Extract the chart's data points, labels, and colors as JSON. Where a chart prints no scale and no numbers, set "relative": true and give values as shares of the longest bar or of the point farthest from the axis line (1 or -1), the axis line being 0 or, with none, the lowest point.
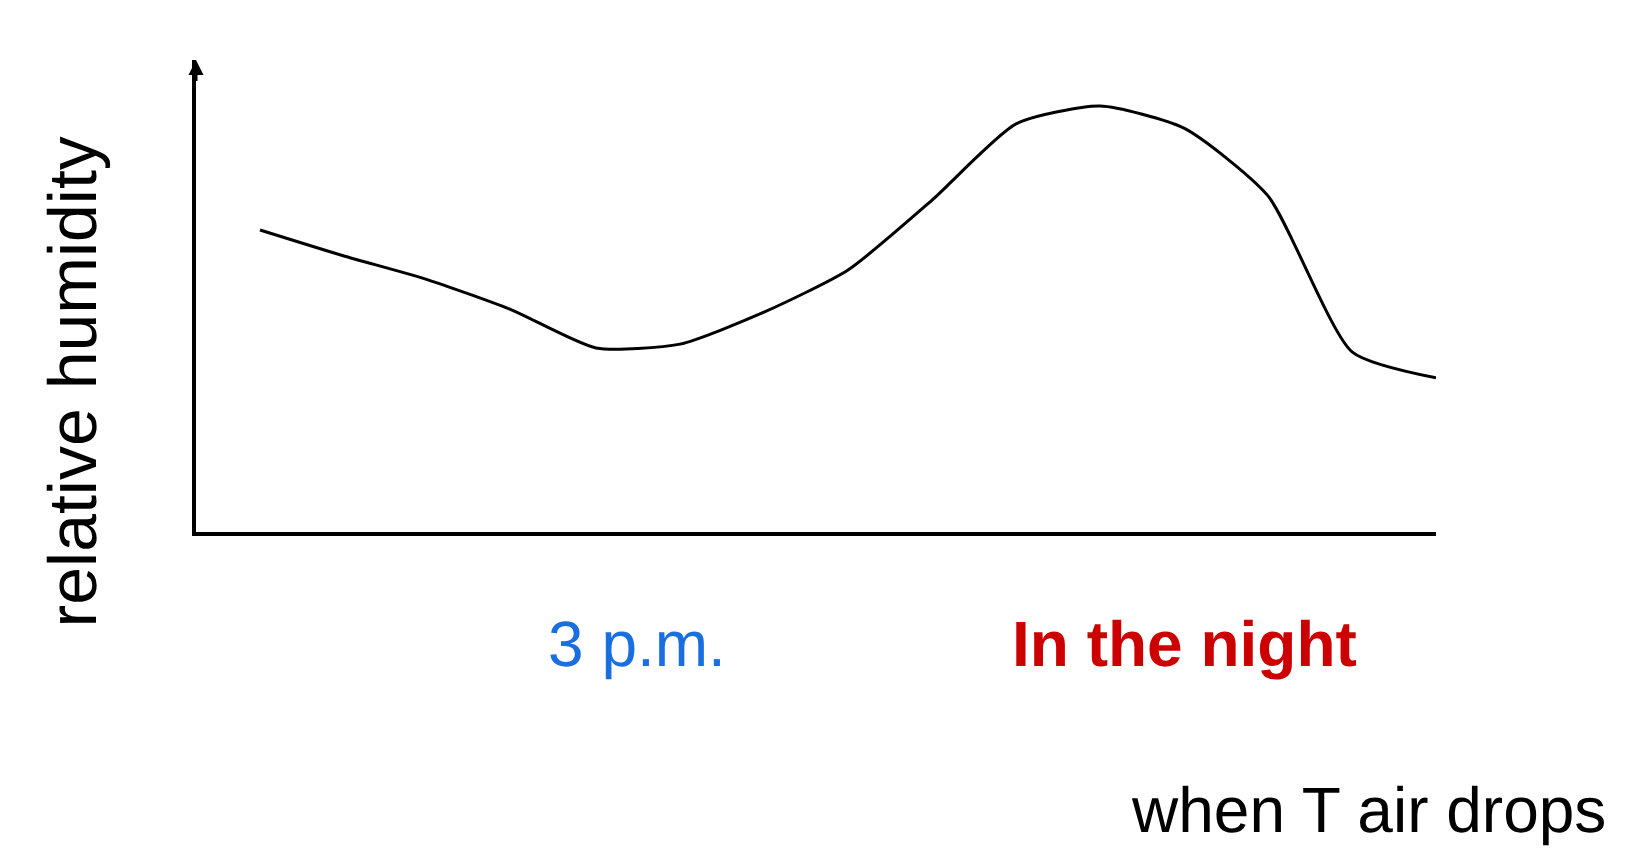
{
  "chart_data": {
    "type": "line",
    "relative": true,
    "ylabel": "relative humidity",
    "xlabel": "when T air drops",
    "annotations": [
      "3 p.m.",
      "In the night"
    ],
    "categories": [
      null,
      null,
      null,
      null,
      null,
      null,
      null,
      null,
      null,
      null,
      null,
      null,
      null,
      null,
      null
    ],
    "series": [
      {
        "color": "#000000",
        "values": [
          0.709,
          0.648,
          0.592,
          0.521,
          0.432,
          0.441,
          0.516,
          0.615,
          0.779,
          0.958,
          1,
          0.948,
          0.789,
          0.423,
          0.362
        ]
      }
    ],
    "marker": "none",
    "line_style": "solid"
  }
}
